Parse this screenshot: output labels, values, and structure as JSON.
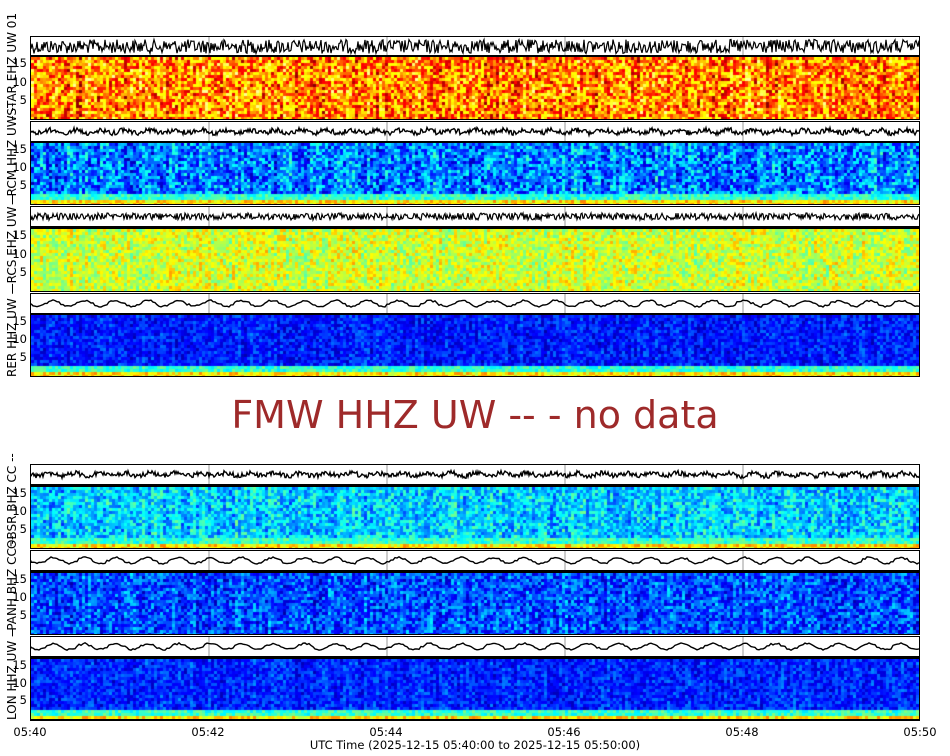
{
  "chart_data": {
    "type": "heatmap",
    "title": "",
    "xlabel": "UTC Time (2025-12-15 05:40:00 to 2025-12-15 05:50:00)",
    "x_ticks": [
      "05:40",
      "05:42",
      "05:44",
      "05:46",
      "05:48",
      "05:50"
    ],
    "x_range": [
      "2025-12-15 05:40:00",
      "2025-12-15 05:50:00"
    ],
    "y_ticks": [
      5,
      10,
      15
    ],
    "y_unit": "Hz",
    "grid": false,
    "panels": [
      {
        "station": "STAR EHZ UW 01",
        "ylabel": "-STAR EHZ UW 01",
        "colormap": "hot",
        "dominant": "red/orange/yellow",
        "waveform": "dense high-frequency noise"
      },
      {
        "station": "RCM HHZ UW --",
        "ylabel": "--RCM HHZ UW --",
        "colormap": "jet",
        "dominant": "blue",
        "waveform": "moderate noise"
      },
      {
        "station": "RCS EHZ UW --",
        "ylabel": "--RCS EHZ UW --",
        "colormap": "jet",
        "dominant": "yellow/green",
        "waveform": "dense noise"
      },
      {
        "station": "RER HHZ UW --",
        "ylabel": "RER HHZ UW --",
        "colormap": "jet",
        "dominant": "dark blue",
        "waveform": "low-frequency oscillation"
      },
      {
        "station": "FMW HHZ UW --",
        "status": "no data"
      },
      {
        "station": "OBSR BHZ CC --",
        "ylabel": "OBSR BHZ CC --",
        "colormap": "jet",
        "dominant": "cyan/blue",
        "waveform": "noisy with bursts"
      },
      {
        "station": "PANH BHZ CC --",
        "ylabel": "-PANH BHZ CC --",
        "colormap": "jet",
        "dominant": "blue",
        "waveform": "low-frequency oscillation"
      },
      {
        "station": "LON HHZ UW --",
        "ylabel": "LON HHZ UW --",
        "colormap": "jet",
        "dominant": "dark blue",
        "waveform": "low-frequency oscillation"
      }
    ]
  },
  "labels": {
    "p1": "-STAR EHZ UW 01",
    "p2": "--RCM HHZ UW --",
    "p3": "--RCS EHZ UW --",
    "p4": "RER HHZ UW --",
    "p6": "ΘBSR BHZ CC --",
    "p7": "-PANH BHZ CC --",
    "p8": "LON HHZ UW --"
  },
  "nodata_text": "FMW HHZ UW -- - no data",
  "y_tick_labels": [
    "15",
    "10",
    "5"
  ],
  "x_tick_labels": [
    "05:40",
    "05:42",
    "05:44",
    "05:46",
    "05:48",
    "05:50"
  ],
  "xlabel": "UTC Time (2025-12-15 05:40:00 to 2025-12-15 05:50:00)",
  "colors": {
    "nodata": "#9e2a2a"
  }
}
